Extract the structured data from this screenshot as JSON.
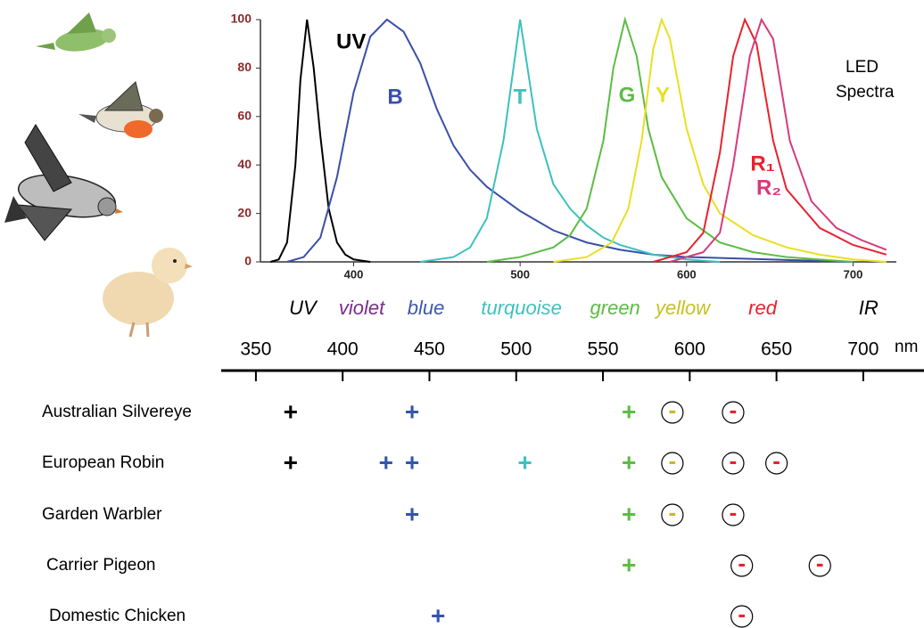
{
  "chart_data": [
    {
      "type": "line",
      "annotation": "LED Spectra",
      "xlim": [
        344,
        726
      ],
      "ylim": [
        0,
        100
      ],
      "xticks": [
        400,
        500,
        600,
        700
      ],
      "yticks": [
        0,
        20,
        40,
        60,
        80,
        100
      ],
      "series": [
        {
          "name": "UV",
          "color": "#000000",
          "x": [
            350,
            355,
            360,
            365,
            368,
            372,
            376,
            380,
            385,
            390,
            395,
            400,
            410
          ],
          "values": [
            0,
            1,
            8,
            40,
            75,
            100,
            80,
            52,
            22,
            8,
            3,
            1,
            0
          ]
        },
        {
          "name": "B",
          "color": "#3a4fa8",
          "x": [
            360,
            370,
            380,
            390,
            400,
            410,
            420,
            430,
            440,
            450,
            460,
            470,
            480,
            490,
            500,
            520,
            540,
            560,
            580,
            600,
            650,
            700
          ],
          "values": [
            0,
            2,
            10,
            35,
            70,
            93,
            100,
            95,
            82,
            63,
            48,
            38,
            31,
            26,
            21,
            13,
            8,
            5,
            3,
            2,
            1,
            0
          ]
        },
        {
          "name": "T",
          "color": "#3cc0c0",
          "x": [
            440,
            460,
            470,
            480,
            490,
            500,
            510,
            520,
            530,
            540,
            550,
            560,
            580,
            600,
            620
          ],
          "values": [
            0,
            2,
            6,
            18,
            50,
            100,
            55,
            32,
            22,
            15,
            10,
            7,
            3,
            1,
            0
          ]
        },
        {
          "name": "G",
          "color": "#5cbc45",
          "x": [
            480,
            500,
            520,
            530,
            540,
            550,
            556,
            563,
            570,
            577,
            585,
            600,
            620,
            640,
            660,
            700
          ],
          "values": [
            0,
            2,
            6,
            11,
            22,
            50,
            80,
            100,
            85,
            55,
            35,
            18,
            8,
            4,
            2,
            0
          ]
        },
        {
          "name": "Y",
          "color": "#e8e020",
          "x": [
            520,
            540,
            555,
            565,
            573,
            580,
            585,
            590,
            600,
            610,
            620,
            640,
            660,
            680,
            700,
            720
          ],
          "values": [
            0,
            2,
            8,
            22,
            50,
            88,
            100,
            92,
            55,
            32,
            20,
            11,
            6,
            3,
            1,
            0
          ]
        },
        {
          "name": "R₁",
          "color": "#e8222e",
          "x": [
            580,
            600,
            610,
            620,
            628,
            635,
            642,
            652,
            660,
            680,
            700,
            720
          ],
          "values": [
            0,
            4,
            12,
            45,
            85,
            100,
            90,
            50,
            30,
            14,
            7,
            3
          ]
        },
        {
          "name": "R₂",
          "color": "#d63a7a",
          "x": [
            590,
            610,
            620,
            628,
            638,
            645,
            652,
            662,
            675,
            690,
            705,
            720
          ],
          "values": [
            0,
            4,
            12,
            40,
            85,
            100,
            92,
            50,
            25,
            14,
            9,
            5
          ]
        }
      ]
    },
    {
      "type": "response-scale",
      "unit": "nm",
      "xlim": [
        330,
        735
      ],
      "xticks": [
        350,
        400,
        450,
        500,
        550,
        600,
        650,
        700
      ],
      "bands": [
        {
          "label": "UV",
          "color": "#000000",
          "wavelength": 377
        },
        {
          "label": "violet",
          "color": "#7a2c8a",
          "wavelength": 411
        },
        {
          "label": "blue",
          "color": "#3d57b0",
          "wavelength": 448
        },
        {
          "label": "turquoise",
          "color": "#40c0c0",
          "wavelength": 503
        },
        {
          "label": "green",
          "color": "#5cbc45",
          "wavelength": 557
        },
        {
          "label": "yellow",
          "color": "#c8c020",
          "wavelength": 596
        },
        {
          "label": "red",
          "color": "#e8222e",
          "wavelength": 642
        },
        {
          "label": "IR",
          "color": "#000000",
          "wavelength": 703
        }
      ],
      "rows": [
        {
          "name": "Australian Silvereye",
          "responses": [
            {
              "sign": "+",
              "color": "#000000",
              "wavelength": 370
            },
            {
              "sign": "+",
              "color": "#3355aa",
              "wavelength": 440
            },
            {
              "sign": "+",
              "color": "#5cbc45",
              "wavelength": 565
            },
            {
              "sign": "-",
              "color": "#c8b82a",
              "wavelength": 590
            },
            {
              "sign": "-",
              "color": "#e8222e",
              "wavelength": 625
            }
          ]
        },
        {
          "name": "European Robin",
          "responses": [
            {
              "sign": "+",
              "color": "#000000",
              "wavelength": 370
            },
            {
              "sign": "+",
              "color": "#3355aa",
              "wavelength": 425
            },
            {
              "sign": "+",
              "color": "#3355aa",
              "wavelength": 440
            },
            {
              "sign": "+",
              "color": "#3cc0c0",
              "wavelength": 505
            },
            {
              "sign": "+",
              "color": "#5cbc45",
              "wavelength": 565
            },
            {
              "sign": "-",
              "color": "#c8b82a",
              "wavelength": 590
            },
            {
              "sign": "-",
              "color": "#e8222e",
              "wavelength": 625
            },
            {
              "sign": "-",
              "color": "#e8222e",
              "wavelength": 650
            }
          ]
        },
        {
          "name": "Garden Warbler",
          "responses": [
            {
              "sign": "+",
              "color": "#3355aa",
              "wavelength": 440
            },
            {
              "sign": "+",
              "color": "#5cbc45",
              "wavelength": 565
            },
            {
              "sign": "-",
              "color": "#c8b82a",
              "wavelength": 590
            },
            {
              "sign": "-",
              "color": "#e8222e",
              "wavelength": 625
            }
          ]
        },
        {
          "name": "Carrier Pigeon",
          "responses": [
            {
              "sign": "+",
              "color": "#5cbc45",
              "wavelength": 565
            },
            {
              "sign": "-",
              "color": "#e8222e",
              "wavelength": 630
            },
            {
              "sign": "-",
              "color": "#e8222e",
              "wavelength": 675
            }
          ]
        },
        {
          "name": "Domestic Chicken",
          "responses": [
            {
              "sign": "+",
              "color": "#3355aa",
              "wavelength": 455
            },
            {
              "sign": "-",
              "color": "#e8222e",
              "wavelength": 630
            }
          ]
        }
      ]
    }
  ]
}
